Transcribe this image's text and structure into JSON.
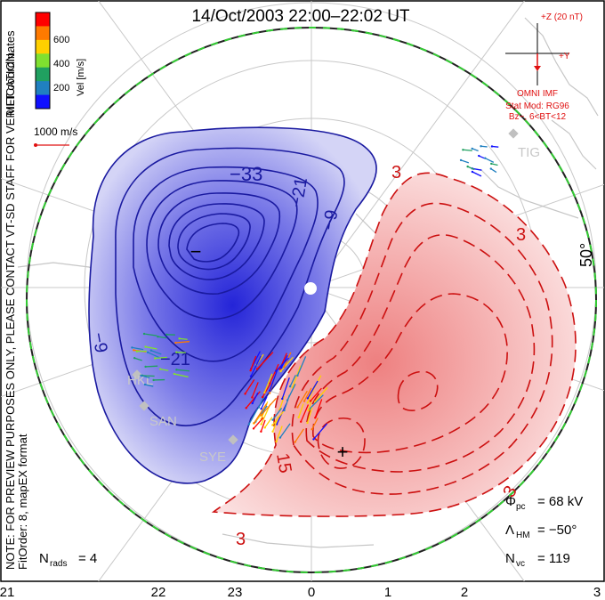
{
  "title": "14/Oct/2003 22:00–22:02 UT",
  "watermark": "NOTE: FOR PREVIEW PURPOSES ONLY, PLEASE CONTACT VT-SD STAFF FOR VERIFICATION.",
  "fit_info": "FitOrder: 8, mapEX format",
  "coordinates": "MLT coordinates",
  "velocity_legend": {
    "label": "Vel [m/s]",
    "ticks": [
      "600",
      "400",
      "200"
    ],
    "colors": [
      "#ff0000",
      "#ff7a00",
      "#ffd000",
      "#80e030",
      "#20a060",
      "#2080c0",
      "#1010ff"
    ]
  },
  "reference_vector": "1000 m/s",
  "imf": {
    "label_z": "+Z (20 nT)",
    "label_y": "+Y",
    "source": "OMNI IMF",
    "model_line1": "Stat Mod: RG96",
    "model_line2": "Bz−, 6<BT<12"
  },
  "stats": {
    "phi_label": "Φ",
    "phi_sub": "pc",
    "phi_value": "= 68 kV",
    "lambda_label": "Λ",
    "lambda_sub": "HM",
    "lambda_value": "= −50°",
    "nvc_label": "N",
    "nvc_sub": "vc",
    "nvc_value": "= 119",
    "nrads_label": "N",
    "nrads_sub": "rads",
    "nrads_value": "= 4"
  },
  "latitude_label": "50°",
  "mlt_ticks": [
    "21",
    "22",
    "23",
    "0",
    "1",
    "2",
    "3"
  ],
  "stations": [
    "HKL",
    "SAN",
    "SYE",
    "TIG"
  ],
  "contour_labels": {
    "negative": [
      "−33",
      "−21",
      "−9",
      "−9",
      "−21"
    ],
    "positive": [
      "3",
      "3",
      "3",
      "15",
      "3"
    ]
  },
  "extrema": {
    "min_symbol": "−",
    "max_symbol": "+"
  },
  "colors": {
    "negative_line": "#1a1aa0",
    "positive_line": "#cc1010",
    "boundary_green": "#33cc33",
    "grid": "#c8c8c8",
    "annotation_red": "#e01010"
  }
}
